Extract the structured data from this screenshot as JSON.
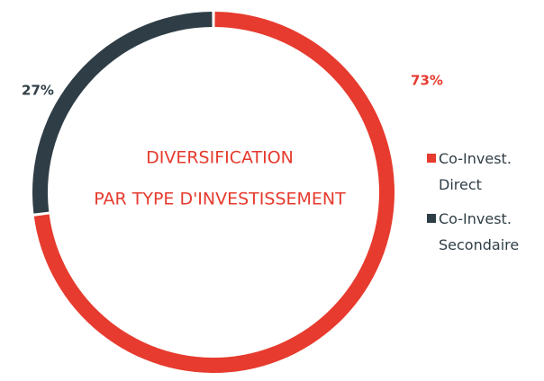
{
  "chart_data": {
    "type": "donut",
    "title": "DIVERSIFICATION",
    "subtitle": "PAR TYPE D'INVESTISSEMENT",
    "categories": [
      "Co-Invest. Direct",
      "Co-Invest. Secondaire"
    ],
    "values": [
      73,
      27
    ],
    "value_labels": [
      "73%",
      "27%"
    ],
    "colors": [
      "#e63b2e",
      "#2f3e46"
    ],
    "legend": "right"
  }
}
